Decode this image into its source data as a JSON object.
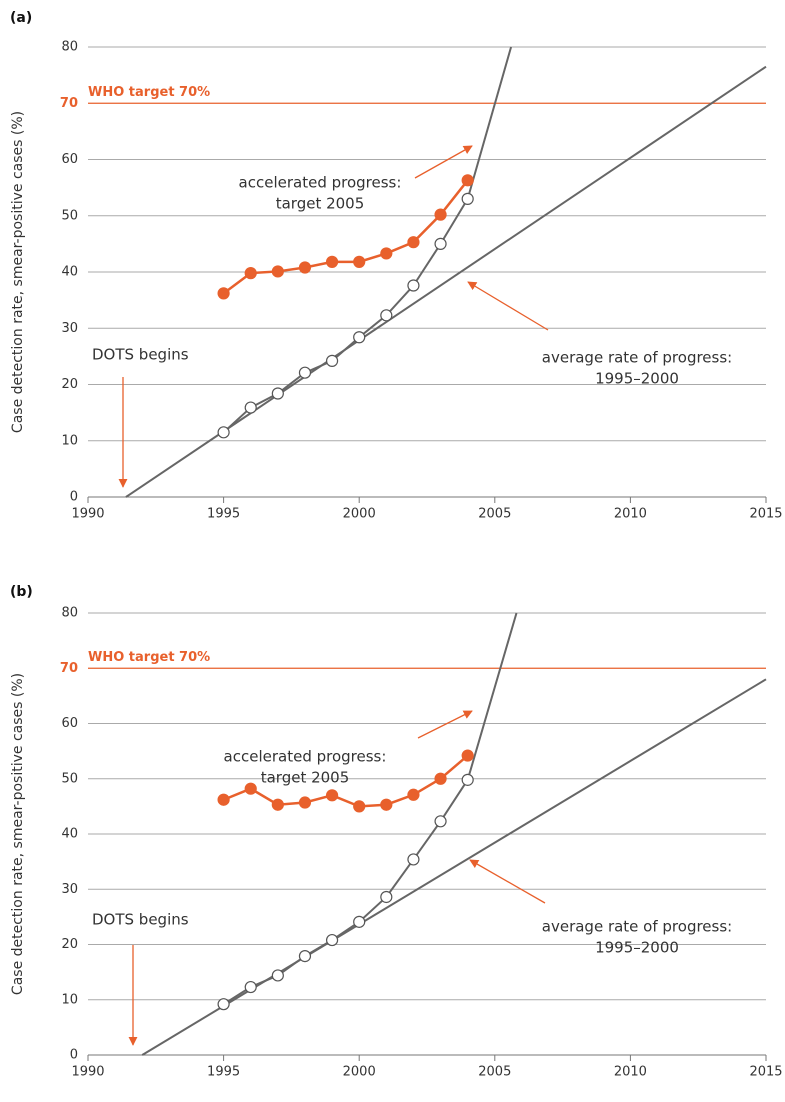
{
  "chart_data": [
    {
      "type": "line",
      "panel_label": "(a)",
      "y_label": "Case detection rate, smear-positive cases (%)",
      "xlim": [
        1990,
        2015
      ],
      "xticks": [
        1990,
        1995,
        2000,
        2005,
        2010,
        2015
      ],
      "ylim": [
        0,
        80
      ],
      "yticks": [
        0,
        10,
        20,
        30,
        40,
        50,
        60,
        70,
        80
      ],
      "grid": true,
      "target": {
        "value": 70,
        "label": "WHO target 70%",
        "color": "#e8602c"
      },
      "series": [
        {
          "color": "#e8602c",
          "marker": "filled",
          "x": [
            1995,
            1996,
            1997,
            1998,
            1999,
            2000,
            2001,
            2002,
            2003,
            2004
          ],
          "values": [
            36.2,
            39.8,
            40.1,
            40.8,
            41.8,
            41.8,
            43.3,
            45.3,
            50.2,
            56.3
          ]
        },
        {
          "color": "#666666",
          "marker": "open",
          "x": [
            1995,
            1996,
            1997,
            1998,
            1999,
            2000,
            2001,
            2002,
            2003,
            2004
          ],
          "values": [
            11.5,
            15.9,
            18.4,
            22.1,
            24.2,
            28.4,
            32.3,
            37.6,
            45.0,
            53.0
          ]
        },
        {
          "color": "#666666",
          "marker": "none",
          "x": [
            2004,
            2005.6
          ],
          "values": [
            53.0,
            80
          ]
        },
        {
          "color": "#666666",
          "marker": "none",
          "x": [
            1991.4,
            2015
          ],
          "values": [
            0,
            76.5
          ]
        }
      ],
      "annotations": [
        {
          "lines": [
            "accelerated progress:",
            "target 2005"
          ]
        },
        {
          "lines": [
            "average rate of progress:",
            "1995–2000"
          ]
        },
        {
          "lines": [
            "DOTS begins"
          ]
        }
      ]
    },
    {
      "type": "line",
      "panel_label": "(b)",
      "y_label": "Case detection rate, smear-positive cases (%)",
      "xlim": [
        1990,
        2015
      ],
      "xticks": [
        1990,
        1995,
        2000,
        2005,
        2010,
        2015
      ],
      "ylim": [
        0,
        80
      ],
      "yticks": [
        0,
        10,
        20,
        30,
        40,
        50,
        60,
        70,
        80
      ],
      "grid": true,
      "target": {
        "value": 70,
        "label": "WHO target 70%",
        "color": "#e8602c"
      },
      "series": [
        {
          "color": "#e8602c",
          "marker": "filled",
          "x": [
            1995,
            1996,
            1997,
            1998,
            1999,
            2000,
            2001,
            2002,
            2003,
            2004
          ],
          "values": [
            46.2,
            48.2,
            45.3,
            45.7,
            47.0,
            45.0,
            45.3,
            47.1,
            50.0,
            54.2
          ]
        },
        {
          "color": "#666666",
          "marker": "open",
          "x": [
            1995,
            1996,
            1997,
            1998,
            1999,
            2000,
            2001,
            2002,
            2003,
            2004
          ],
          "values": [
            9.2,
            12.3,
            14.4,
            17.9,
            20.8,
            24.1,
            28.6,
            35.4,
            42.3,
            49.8
          ]
        },
        {
          "color": "#666666",
          "marker": "none",
          "x": [
            2004,
            2005.8
          ],
          "values": [
            49.8,
            80
          ]
        },
        {
          "color": "#666666",
          "marker": "none",
          "x": [
            1992,
            2015
          ],
          "values": [
            0,
            68
          ]
        }
      ],
      "annotations": [
        {
          "lines": [
            "accelerated progress:",
            "target 2005"
          ]
        },
        {
          "lines": [
            "average rate of progress:",
            "1995–2000"
          ]
        },
        {
          "lines": [
            "DOTS begins"
          ]
        }
      ]
    }
  ]
}
